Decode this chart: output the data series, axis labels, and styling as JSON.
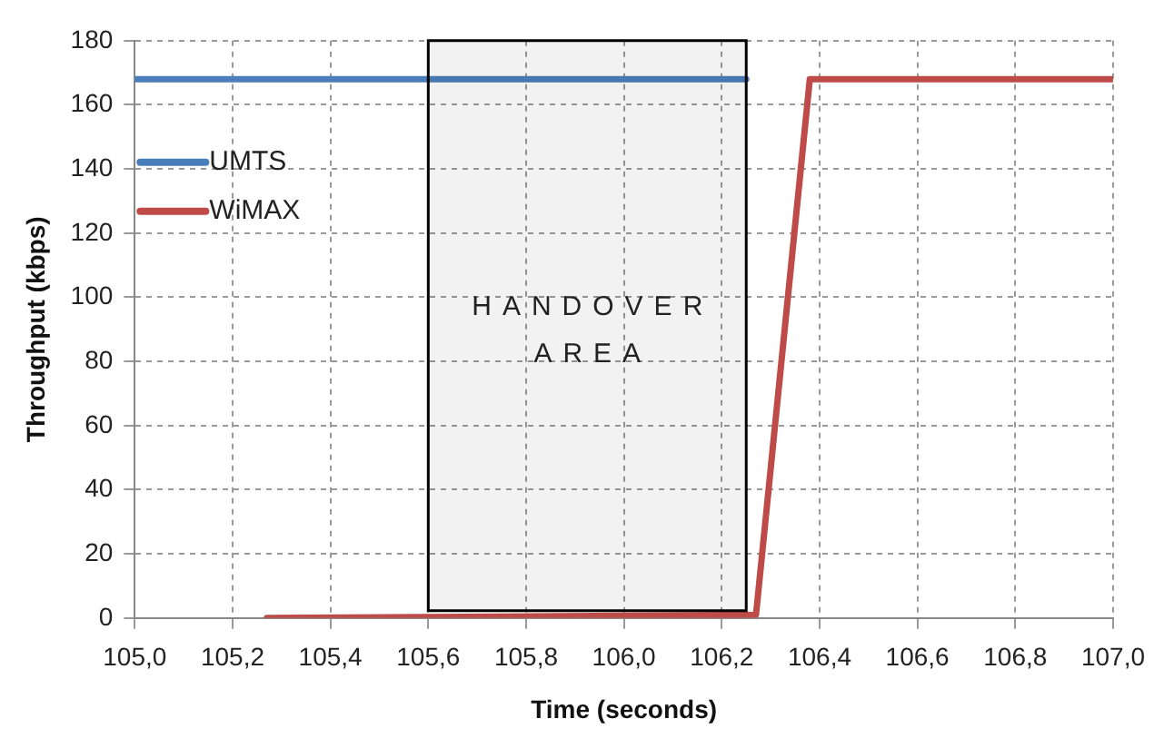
{
  "chart_data": {
    "type": "line",
    "xlabel": "Time (seconds)",
    "ylabel": "Throughput (kbps)",
    "xlim": [
      105.0,
      107.0
    ],
    "xticks": [
      {
        "value": 105.0,
        "label": "105,0"
      },
      {
        "value": 105.2,
        "label": "105,2"
      },
      {
        "value": 105.4,
        "label": "105,4"
      },
      {
        "value": 105.6,
        "label": "105,6"
      },
      {
        "value": 105.8,
        "label": "105,8"
      },
      {
        "value": 106.0,
        "label": "106,0"
      },
      {
        "value": 106.2,
        "label": "106,2"
      },
      {
        "value": 106.4,
        "label": "106,4"
      },
      {
        "value": 106.6,
        "label": "106,6"
      },
      {
        "value": 106.8,
        "label": "106,8"
      },
      {
        "value": 107.0,
        "label": "107,0"
      }
    ],
    "ylim": [
      0,
      180
    ],
    "yticks": [
      0,
      20,
      40,
      60,
      80,
      100,
      120,
      140,
      160,
      180
    ],
    "grid": true,
    "legend": "top left",
    "marker": "none",
    "line_style": "solid",
    "series": [
      {
        "name": "UMTS",
        "color": "#4a7ebb",
        "x": [
          105.0,
          106.25
        ],
        "values": [
          168,
          168
        ]
      },
      {
        "name": "WiMAX",
        "color": "#be4b48",
        "x": [
          105.27,
          106.27,
          106.38,
          107.0
        ],
        "values": [
          0,
          1,
          168,
          168
        ]
      }
    ],
    "bands": [
      {
        "axis": "x",
        "from": 105.6,
        "to": 106.25,
        "label": "HANDOVER AREA",
        "color": "#000000"
      }
    ]
  }
}
